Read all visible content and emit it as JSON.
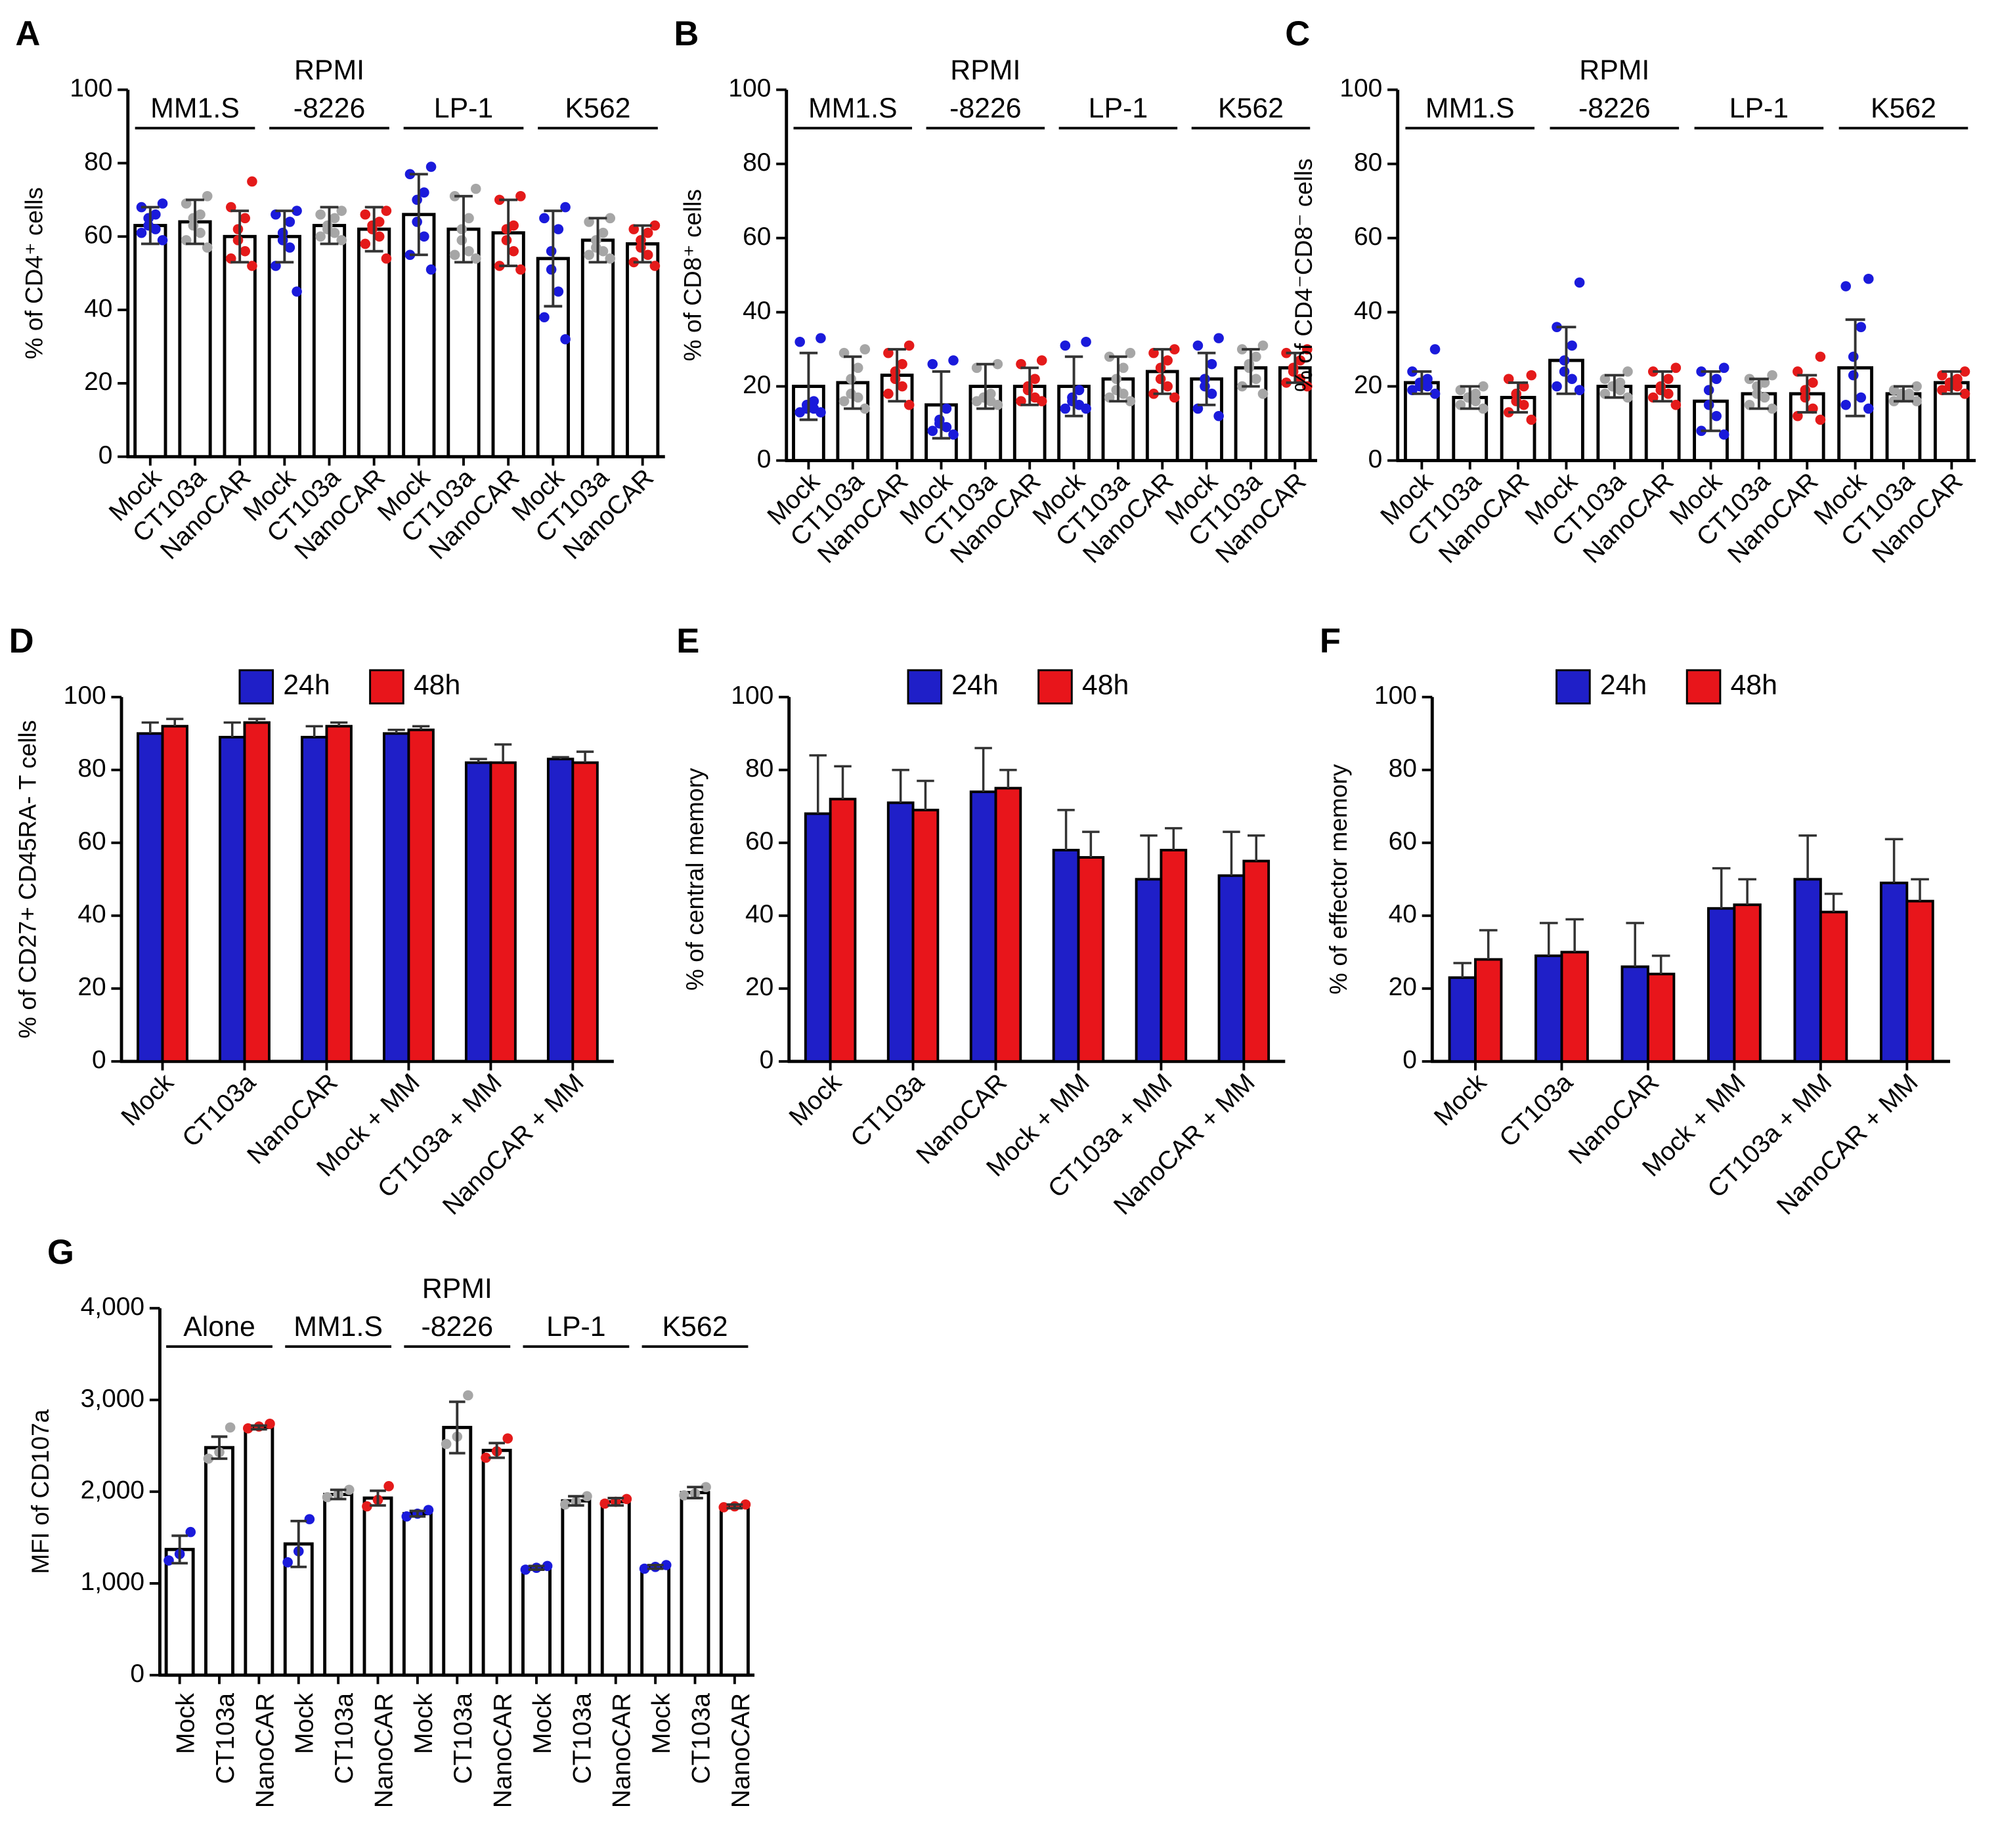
{
  "chart_data": [
    {
      "type": "bar_dot",
      "label": "A",
      "ylabel": "% of CD4⁺ cells",
      "ylim": [
        0,
        100
      ],
      "yticks": [
        0,
        20,
        40,
        60,
        80,
        100
      ],
      "error_bars": "both",
      "colors": [
        "#1a1adb",
        "#a6a6a6",
        "#e41a1a"
      ],
      "groups": [
        {
          "name": [
            "MM1.S"
          ],
          "categories": [
            "Mock",
            "CT103a",
            "NanoCAR"
          ],
          "means": [
            63,
            64,
            60
          ],
          "errors": [
            5,
            6,
            7
          ],
          "points": [
            [
              69,
              68,
              66,
              65,
              63,
              62,
              61,
              59
            ],
            [
              71,
              69,
              66,
              65,
              63,
              61,
              59,
              57
            ],
            [
              75,
              68,
              65,
              62,
              59,
              56,
              54,
              52
            ]
          ]
        },
        {
          "name": [
            "RPMI",
            "-8226"
          ],
          "categories": [
            "Mock",
            "CT103a",
            "NanoCAR"
          ],
          "means": [
            60,
            63,
            62
          ],
          "errors": [
            7,
            5,
            6
          ],
          "points": [
            [
              67,
              66,
              64,
              61,
              59,
              57,
              52,
              45
            ],
            [
              67,
              66,
              65,
              63,
              62,
              61,
              60,
              59
            ],
            [
              67,
              66,
              64,
              63,
              62,
              60,
              58,
              54
            ]
          ]
        },
        {
          "name": [
            "LP-1"
          ],
          "categories": [
            "Mock",
            "CT103a",
            "NanoCAR"
          ],
          "means": [
            66,
            62,
            61
          ],
          "errors": [
            11,
            9,
            9
          ],
          "points": [
            [
              79,
              77,
              72,
              70,
              64,
              60,
              55,
              51
            ],
            [
              73,
              71,
              65,
              62,
              59,
              56,
              55,
              54
            ],
            [
              71,
              70,
              63,
              62,
              59,
              56,
              52,
              51
            ]
          ]
        },
        {
          "name": [
            "K562"
          ],
          "categories": [
            "Mock",
            "CT103a",
            "NanoCAR"
          ],
          "means": [
            54,
            59,
            58
          ],
          "errors": [
            13,
            6,
            5
          ],
          "points": [
            [
              68,
              65,
              62,
              56,
              51,
              45,
              38,
              32
            ],
            [
              65,
              64,
              61,
              59,
              57,
              56,
              55,
              54
            ],
            [
              63,
              62,
              61,
              59,
              57,
              55,
              53,
              52
            ]
          ]
        }
      ]
    },
    {
      "type": "bar_dot",
      "label": "B",
      "ylabel": "% of CD8⁺ cells",
      "ylim": [
        0,
        100
      ],
      "yticks": [
        0,
        20,
        40,
        60,
        80,
        100
      ],
      "error_bars": "both",
      "colors": [
        "#1a1adb",
        "#a6a6a6",
        "#e41a1a"
      ],
      "groups": [
        {
          "name": [
            "MM1.S"
          ],
          "categories": [
            "Mock",
            "CT103a",
            "NanoCAR"
          ],
          "means": [
            20,
            21,
            23
          ],
          "errors": [
            9,
            7,
            7
          ],
          "points": [
            [
              33,
              32,
              16,
              15,
              14,
              14,
              13,
              13
            ],
            [
              30,
              29,
              25,
              22,
              18,
              17,
              16,
              14
            ],
            [
              31,
              29,
              26,
              24,
              22,
              20,
              18,
              15
            ]
          ]
        },
        {
          "name": [
            "RPMI",
            "-8226"
          ],
          "categories": [
            "Mock",
            "CT103a",
            "NanoCAR"
          ],
          "means": [
            15,
            20,
            20
          ],
          "errors": [
            9,
            6,
            5
          ],
          "points": [
            [
              27,
              26,
              14,
              11,
              10,
              9,
              8,
              7
            ],
            [
              26,
              25,
              18,
              17,
              17,
              16,
              16,
              15
            ],
            [
              27,
              26,
              22,
              20,
              19,
              17,
              16,
              16
            ]
          ]
        },
        {
          "name": [
            "LP-1"
          ],
          "categories": [
            "Mock",
            "CT103a",
            "NanoCAR"
          ],
          "means": [
            20,
            22,
            24
          ],
          "errors": [
            8,
            6,
            6
          ],
          "points": [
            [
              32,
              31,
              19,
              17,
              16,
              15,
              14,
              14
            ],
            [
              29,
              28,
              25,
              22,
              19,
              18,
              17,
              16
            ],
            [
              30,
              29,
              27,
              25,
              22,
              20,
              18,
              17
            ]
          ]
        },
        {
          "name": [
            "K562"
          ],
          "categories": [
            "Mock",
            "CT103a",
            "NanoCAR"
          ],
          "means": [
            22,
            25,
            25
          ],
          "errors": [
            7,
            5,
            4
          ],
          "points": [
            [
              33,
              31,
              26,
              22,
              20,
              18,
              14,
              12
            ],
            [
              31,
              30,
              28,
              26,
              25,
              22,
              20,
              18
            ],
            [
              30,
              29,
              27,
              25,
              24,
              22,
              21,
              20
            ]
          ]
        }
      ]
    },
    {
      "type": "bar_dot",
      "label": "C",
      "ylabel": "% of CD4⁻CD8⁻ cells",
      "ylim": [
        0,
        100
      ],
      "yticks": [
        0,
        20,
        40,
        60,
        80,
        100
      ],
      "error_bars": "both",
      "colors": [
        "#1a1adb",
        "#a6a6a6",
        "#e41a1a"
      ],
      "groups": [
        {
          "name": [
            "MM1.S"
          ],
          "categories": [
            "Mock",
            "CT103a",
            "NanoCAR"
          ],
          "means": [
            21,
            17,
            17
          ],
          "errors": [
            3,
            3,
            4
          ],
          "points": [
            [
              30,
              24,
              22,
              21,
              20,
              20,
              19,
              18
            ],
            [
              20,
              19,
              18,
              17,
              17,
              16,
              15,
              14
            ],
            [
              23,
              22,
              20,
              18,
              16,
              15,
              13,
              11
            ]
          ]
        },
        {
          "name": [
            "RPMI",
            "-8226"
          ],
          "categories": [
            "Mock",
            "CT103a",
            "NanoCAR"
          ],
          "means": [
            27,
            20,
            20
          ],
          "errors": [
            9,
            3,
            4
          ],
          "points": [
            [
              48,
              36,
              31,
              27,
              24,
              22,
              20,
              19
            ],
            [
              24,
              22,
              21,
              20,
              20,
              19,
              18,
              17
            ],
            [
              25,
              24,
              22,
              20,
              19,
              18,
              17,
              15
            ]
          ]
        },
        {
          "name": [
            "LP-1"
          ],
          "categories": [
            "Mock",
            "CT103a",
            "NanoCAR"
          ],
          "means": [
            16,
            18,
            18
          ],
          "errors": [
            8,
            4,
            5
          ],
          "points": [
            [
              25,
              24,
              22,
              19,
              15,
              12,
              8,
              7
            ],
            [
              23,
              22,
              21,
              20,
              18,
              17,
              15,
              14
            ],
            [
              28,
              24,
              21,
              19,
              17,
              14,
              12,
              11
            ]
          ]
        },
        {
          "name": [
            "K562"
          ],
          "categories": [
            "Mock",
            "CT103a",
            "NanoCAR"
          ],
          "means": [
            25,
            18,
            21
          ],
          "errors": [
            13,
            2,
            3
          ],
          "points": [
            [
              49,
              47,
              36,
              28,
              23,
              17,
              15,
              14
            ],
            [
              20,
              19,
              18,
              18,
              17,
              17,
              16,
              16
            ],
            [
              24,
              23,
              22,
              21,
              20,
              20,
              19,
              18
            ]
          ]
        }
      ]
    },
    {
      "type": "grouped_bar",
      "label": "D",
      "ylabel": "% of CD27+ CD45RA- T cells",
      "ylim": [
        0,
        100
      ],
      "yticks": [
        0,
        20,
        40,
        60,
        80,
        100
      ],
      "error_bars": "up",
      "categories": [
        "Mock",
        "CT103a",
        "NanoCAR",
        "Mock + MM",
        "CT103a + MM",
        "NanoCAR + MM"
      ],
      "series": [
        {
          "name": "24h",
          "color": "#1f1fc8",
          "values": [
            90,
            89,
            89,
            90,
            82,
            83
          ],
          "errors": [
            3,
            4,
            3,
            1,
            1,
            0.5
          ]
        },
        {
          "name": "48h",
          "color": "#e8151b",
          "values": [
            92,
            93,
            92,
            91,
            82,
            82
          ],
          "errors": [
            2,
            1,
            1,
            1,
            5,
            3
          ]
        }
      ]
    },
    {
      "type": "grouped_bar",
      "label": "E",
      "ylabel": "% of central memory",
      "ylim": [
        0,
        100
      ],
      "yticks": [
        0,
        20,
        40,
        60,
        80,
        100
      ],
      "error_bars": "up",
      "categories": [
        "Mock",
        "CT103a",
        "NanoCAR",
        "Mock + MM",
        "CT103a + MM",
        "NanoCAR + MM"
      ],
      "series": [
        {
          "name": "24h",
          "color": "#1f1fc8",
          "values": [
            68,
            71,
            74,
            58,
            50,
            51
          ],
          "errors": [
            16,
            9,
            12,
            11,
            12,
            12
          ]
        },
        {
          "name": "48h",
          "color": "#e8151b",
          "values": [
            72,
            69,
            75,
            56,
            58,
            55
          ],
          "errors": [
            9,
            8,
            5,
            7,
            6,
            7
          ]
        }
      ]
    },
    {
      "type": "grouped_bar",
      "label": "F",
      "ylabel": "% of effector memory",
      "ylim": [
        0,
        100
      ],
      "yticks": [
        0,
        20,
        40,
        60,
        80,
        100
      ],
      "error_bars": "up",
      "categories": [
        "Mock",
        "CT103a",
        "NanoCAR",
        "Mock + MM",
        "CT103a + MM",
        "NanoCAR + MM"
      ],
      "series": [
        {
          "name": "24h",
          "color": "#1f1fc8",
          "values": [
            23,
            29,
            26,
            42,
            50,
            49
          ],
          "errors": [
            4,
            9,
            12,
            11,
            12,
            12
          ]
        },
        {
          "name": "48h",
          "color": "#e8151b",
          "values": [
            28,
            30,
            24,
            43,
            41,
            44
          ],
          "errors": [
            8,
            9,
            5,
            7,
            5,
            6
          ]
        }
      ]
    },
    {
      "type": "bar_dot",
      "label": "G",
      "ylabel": "MFI of CD107a",
      "ylim": [
        0,
        4000
      ],
      "yticks": [
        0,
        {
          "value": 1000,
          "label": "1,000"
        },
        {
          "value": 2000,
          "label": "2,000"
        },
        {
          "value": 3000,
          "label": "3,000"
        },
        {
          "value": 4000,
          "label": "4,000"
        }
      ],
      "error_bars": "both",
      "colors": [
        "#1a1adb",
        "#a6a6a6",
        "#e41a1a"
      ],
      "groups": [
        {
          "name": [
            "Alone"
          ],
          "categories": [
            "Mock",
            "CT103a",
            "NanoCAR"
          ],
          "means": [
            1370,
            2480,
            2700
          ],
          "errors": [
            150,
            120,
            20
          ],
          "points": [
            [
              1560,
              1320,
              1250
            ],
            [
              2700,
              2430,
              2360
            ],
            [
              2740,
              2710,
              2690
            ]
          ]
        },
        {
          "name": [
            "MM1.S"
          ],
          "categories": [
            "Mock",
            "CT103a",
            "NanoCAR"
          ],
          "means": [
            1430,
            1970,
            1930
          ],
          "errors": [
            250,
            50,
            80
          ],
          "points": [
            [
              1700,
              1350,
              1230
            ],
            [
              2020,
              1970,
              1940
            ],
            [
              2060,
              1910,
              1840
            ]
          ]
        },
        {
          "name": [
            "RPMI",
            "-8226"
          ],
          "categories": [
            "Mock",
            "CT103a",
            "NanoCAR"
          ],
          "means": [
            1760,
            2700,
            2450
          ],
          "errors": [
            30,
            280,
            80
          ],
          "points": [
            [
              1800,
              1760,
              1730
            ],
            [
              3050,
              2600,
              2520
            ],
            [
              2580,
              2440,
              2370
            ]
          ]
        },
        {
          "name": [
            "LP-1"
          ],
          "categories": [
            "Mock",
            "CT103a",
            "NanoCAR"
          ],
          "means": [
            1170,
            1900,
            1890
          ],
          "errors": [
            20,
            50,
            40
          ],
          "points": [
            [
              1190,
              1170,
              1150
            ],
            [
              1950,
              1890,
              1860
            ],
            [
              1920,
              1890,
              1870
            ]
          ]
        },
        {
          "name": [
            "K562"
          ],
          "categories": [
            "Mock",
            "CT103a",
            "NanoCAR"
          ],
          "means": [
            1180,
            1990,
            1840
          ],
          "errors": [
            20,
            60,
            20
          ],
          "points": [
            [
              1200,
              1180,
              1160
            ],
            [
              2050,
              1980,
              1960
            ],
            [
              1860,
              1840,
              1830
            ]
          ]
        }
      ]
    }
  ]
}
